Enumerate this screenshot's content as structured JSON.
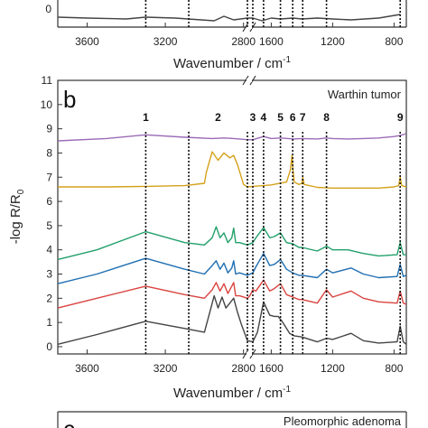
{
  "chart_data": [
    {
      "type": "line",
      "panel": "a",
      "xlabel": "Wavenumber / cm",
      "xlabel_sup": "-1",
      "x_reversed": true,
      "x_ticks": [
        "3600",
        "3200",
        "2800",
        "1600",
        "1200",
        "800"
      ],
      "series": [
        {
          "color": "#444444",
          "x": [
            3750,
            3600,
            3400,
            3300,
            3150,
            2950,
            2900,
            2850,
            2780,
            1720,
            1660,
            1600,
            1540,
            1460,
            1400,
            1300,
            1200,
            1080,
            900,
            760
          ],
          "y": [
            0.55,
            0.5,
            0.45,
            0.55,
            0.5,
            0.35,
            0.6,
            0.4,
            0.5,
            0.5,
            0.35,
            0.5,
            0.45,
            0.5,
            0.45,
            0.5,
            0.45,
            0.4,
            0.5,
            0.7
          ]
        }
      ]
    },
    {
      "type": "line",
      "panel": "b",
      "panel_letter": "b",
      "title": "Warthin tumor",
      "xlabel": "Wavenumber / cm",
      "xlabel_sup": "-1",
      "ylabel": "-log R/R",
      "ylabel_sub": "0",
      "xlim": [
        3750,
        720
      ],
      "x_reversed": true,
      "x_breaks": [
        [
          2780,
          1720
        ]
      ],
      "ylim": [
        -0.3,
        11
      ],
      "x_ticks": [
        "3600",
        "3200",
        "2800",
        "1600",
        "1200",
        "800"
      ],
      "y_ticks": [
        "0",
        "1",
        "2",
        "3",
        "4",
        "5",
        "6",
        "7",
        "8",
        "9",
        "10",
        "11"
      ],
      "band_lines": [
        {
          "label": "1",
          "x": 3300
        },
        {
          "label": "2",
          "x": 3080
        },
        {
          "label": "",
          "x": 2780
        },
        {
          "label": "3",
          "x": 1720
        },
        {
          "label": "4",
          "x": 1650
        },
        {
          "label": "5",
          "x": 1540
        },
        {
          "label": "6",
          "x": 1460
        },
        {
          "label": "7",
          "x": 1395
        },
        {
          "label": "8",
          "x": 1240
        },
        {
          "label": "9",
          "x": 760
        }
      ],
      "band_label_positions": [
        {
          "label": "1",
          "x": 3300
        },
        {
          "label": "2",
          "x": 2930
        },
        {
          "label": "3",
          "x": 1720
        },
        {
          "label": "4",
          "x": 1650
        },
        {
          "label": "5",
          "x": 1540
        },
        {
          "label": "6",
          "x": 1460
        },
        {
          "label": "7",
          "x": 1395
        },
        {
          "label": "8",
          "x": 1240
        },
        {
          "label": "9",
          "x": 760
        }
      ],
      "series": [
        {
          "color": "#9b6bb8",
          "x": [
            3750,
            3500,
            3300,
            3100,
            2960,
            2900,
            2850,
            2780,
            1720,
            1650,
            1600,
            1540,
            1450,
            1400,
            1300,
            1240,
            1200,
            1100,
            1000,
            900,
            800,
            760,
            720
          ],
          "y": [
            8.5,
            8.6,
            8.75,
            8.65,
            8.6,
            8.62,
            8.6,
            8.55,
            8.55,
            8.68,
            8.6,
            8.62,
            8.58,
            8.6,
            8.58,
            8.62,
            8.6,
            8.58,
            8.6,
            8.62,
            8.68,
            8.72,
            8.8
          ]
        },
        {
          "color": "#d4a11a",
          "x": [
            3750,
            3500,
            3300,
            3100,
            3000,
            2990,
            2960,
            2930,
            2900,
            2870,
            2850,
            2830,
            2800,
            2780,
            1720,
            1650,
            1600,
            1500,
            1475,
            1465,
            1458,
            1450,
            1420,
            1400,
            1395,
            1385,
            1300,
            1200,
            1000,
            900,
            800,
            770,
            760,
            750,
            720
          ],
          "y": [
            6.6,
            6.6,
            6.62,
            6.65,
            6.75,
            7.2,
            8.05,
            7.7,
            8.0,
            7.8,
            7.9,
            7.5,
            6.7,
            6.6,
            6.62,
            6.65,
            6.68,
            6.8,
            7.3,
            7.9,
            7.3,
            6.8,
            6.7,
            6.75,
            7.0,
            6.7,
            6.58,
            6.55,
            6.55,
            6.55,
            6.6,
            6.65,
            7.0,
            6.65,
            6.6
          ]
        },
        {
          "color": "#22a06b",
          "x": [
            3750,
            3550,
            3300,
            3100,
            3000,
            2960,
            2940,
            2920,
            2900,
            2880,
            2860,
            2850,
            2840,
            2820,
            2780,
            1720,
            1700,
            1650,
            1610,
            1580,
            1540,
            1500,
            1460,
            1420,
            1400,
            1300,
            1240,
            1200,
            1100,
            1000,
            900,
            780,
            760,
            740,
            720
          ],
          "y": [
            3.6,
            4.0,
            4.75,
            4.3,
            4.2,
            4.5,
            4.95,
            4.5,
            4.7,
            4.3,
            4.5,
            4.9,
            4.3,
            4.3,
            4.2,
            4.3,
            4.5,
            4.92,
            4.5,
            4.55,
            4.7,
            4.3,
            4.25,
            4.1,
            4.1,
            3.95,
            4.15,
            4.0,
            4.0,
            3.85,
            3.75,
            3.8,
            4.3,
            3.8,
            3.8
          ]
        },
        {
          "color": "#1f6fb2",
          "x": [
            3750,
            3550,
            3300,
            3100,
            3000,
            2960,
            2940,
            2920,
            2900,
            2880,
            2860,
            2850,
            2840,
            2820,
            2780,
            1720,
            1700,
            1650,
            1610,
            1580,
            1540,
            1500,
            1460,
            1420,
            1400,
            1300,
            1240,
            1200,
            1080,
            1000,
            900,
            780,
            760,
            740,
            720
          ],
          "y": [
            2.6,
            3.0,
            3.65,
            3.2,
            3.0,
            3.35,
            3.55,
            3.2,
            3.45,
            3.05,
            3.25,
            3.55,
            3.0,
            3.05,
            2.95,
            3.05,
            3.3,
            3.85,
            3.35,
            3.4,
            3.6,
            3.2,
            3.05,
            2.95,
            2.95,
            2.85,
            3.2,
            3.05,
            3.25,
            3.0,
            2.85,
            2.9,
            3.4,
            2.9,
            2.95
          ]
        },
        {
          "color": "#d9433f",
          "x": [
            3750,
            3550,
            3300,
            3100,
            3000,
            2960,
            2940,
            2920,
            2900,
            2880,
            2860,
            2850,
            2840,
            2820,
            2780,
            1740,
            1720,
            1700,
            1650,
            1610,
            1580,
            1540,
            1500,
            1460,
            1420,
            1400,
            1300,
            1240,
            1200,
            1080,
            1000,
            900,
            780,
            760,
            740,
            720
          ],
          "y": [
            1.6,
            2.0,
            2.5,
            2.15,
            2.0,
            2.35,
            2.65,
            2.3,
            2.6,
            2.2,
            2.5,
            2.65,
            2.1,
            2.1,
            2.0,
            2.1,
            2.35,
            2.3,
            2.75,
            2.3,
            2.4,
            2.6,
            2.15,
            2.05,
            1.95,
            1.95,
            1.8,
            2.35,
            2.05,
            2.3,
            2.0,
            1.85,
            1.8,
            2.3,
            1.8,
            1.75
          ]
        },
        {
          "color": "#444444",
          "x": [
            3750,
            3550,
            3300,
            3100,
            3000,
            2970,
            2950,
            2930,
            2910,
            2890,
            2870,
            2850,
            2830,
            2810,
            2780,
            1720,
            1690,
            1650,
            1610,
            1580,
            1555,
            1530,
            1480,
            1450,
            1400,
            1300,
            1240,
            1200,
            1080,
            1000,
            900,
            780,
            760,
            740,
            720
          ],
          "y": [
            0.1,
            0.5,
            1.05,
            0.75,
            0.6,
            1.5,
            2.1,
            1.6,
            2.05,
            1.6,
            1.8,
            2.0,
            1.4,
            0.9,
            0.25,
            0.2,
            0.6,
            1.85,
            1.3,
            1.25,
            1.25,
            1.05,
            0.55,
            0.45,
            0.4,
            0.2,
            0.35,
            0.3,
            0.55,
            0.25,
            0.15,
            0.2,
            0.85,
            0.2,
            0.1
          ]
        }
      ]
    },
    {
      "type": "line",
      "panel": "c",
      "panel_letter": "c",
      "title": "Pleomorphic adenoma"
    }
  ]
}
